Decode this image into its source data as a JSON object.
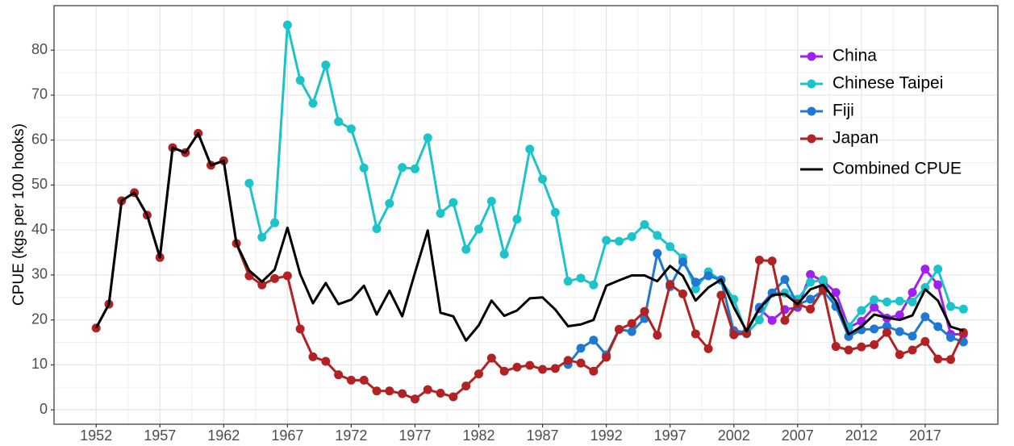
{
  "chart_data": {
    "type": "line",
    "y_label": "CPUE (kgs per 100 hooks)",
    "x": [
      1952,
      1953,
      1954,
      1955,
      1956,
      1957,
      1958,
      1959,
      1960,
      1961,
      1962,
      1963,
      1964,
      1965,
      1966,
      1967,
      1968,
      1969,
      1970,
      1971,
      1972,
      1973,
      1974,
      1975,
      1976,
      1977,
      1978,
      1979,
      1980,
      1981,
      1982,
      1983,
      1984,
      1985,
      1986,
      1987,
      1988,
      1989,
      1990,
      1991,
      1992,
      1993,
      1994,
      1995,
      1996,
      1997,
      1998,
      1999,
      2000,
      2001,
      2002,
      2003,
      2004,
      2005,
      2006,
      2007,
      2008,
      2009,
      2010,
      2011,
      2012,
      2013,
      2014,
      2015,
      2016,
      2017,
      2018,
      2019,
      2020
    ],
    "series": [
      {
        "name": "China",
        "color": "#a020f0",
        "points": true,
        "values": [
          null,
          null,
          null,
          null,
          null,
          null,
          null,
          null,
          null,
          null,
          null,
          null,
          null,
          null,
          null,
          null,
          null,
          null,
          null,
          null,
          null,
          null,
          null,
          null,
          null,
          null,
          null,
          null,
          null,
          null,
          null,
          null,
          null,
          null,
          null,
          null,
          null,
          null,
          null,
          null,
          null,
          null,
          null,
          null,
          null,
          null,
          null,
          null,
          null,
          null,
          17.6,
          17.2,
          22.5,
          19.9,
          22.3,
          22.8,
          30.1,
          28.6,
          26.1,
          18.3,
          19.7,
          22.8,
          20.4,
          21.1,
          26.1,
          31.3,
          27.8,
          16.8,
          16.8
        ]
      },
      {
        "name": "Chinese Taipei",
        "color": "#1cc4c9",
        "points": true,
        "values": [
          null,
          null,
          null,
          null,
          null,
          null,
          null,
          null,
          null,
          null,
          null,
          null,
          50.4,
          38.4,
          41.6,
          85.6,
          73.3,
          68.2,
          76.7,
          64.1,
          62.5,
          53.8,
          40.3,
          45.9,
          53.9,
          53.6,
          60.5,
          43.7,
          46.1,
          35.7,
          40.2,
          46.4,
          34.6,
          42.4,
          58,
          51.3,
          43.9,
          28.6,
          29.3,
          27.8,
          37.7,
          37.5,
          38.5,
          41.2,
          38.8,
          36.3,
          33.8,
          26.9,
          30.7,
          28.8,
          24.6,
          16.9,
          20,
          26,
          26,
          24.6,
          28.4,
          28.9,
          23,
          18.5,
          22.1,
          24.5,
          24,
          24.2,
          24,
          27.2,
          31.3,
          23,
          22.4
        ]
      },
      {
        "name": "Fiji",
        "color": "#1f78d1",
        "points": true,
        "values": [
          null,
          null,
          null,
          null,
          null,
          null,
          null,
          null,
          null,
          null,
          null,
          null,
          null,
          null,
          null,
          null,
          null,
          null,
          null,
          null,
          null,
          null,
          null,
          null,
          null,
          null,
          null,
          null,
          null,
          null,
          null,
          null,
          null,
          null,
          null,
          null,
          null,
          10.1,
          13.7,
          15.5,
          12.2,
          17.9,
          17.4,
          20.3,
          34.8,
          27.4,
          32.9,
          28.4,
          29.8,
          28.9,
          17.4,
          17.2,
          22.8,
          26,
          29,
          23.4,
          24.6,
          26.5,
          23,
          16.3,
          17.8,
          18,
          18.6,
          17.4,
          16.4,
          20.7,
          18.5,
          16.1,
          15.1
        ]
      },
      {
        "name": "Japan",
        "color": "#b22222",
        "points": true,
        "values": [
          18.2,
          23.5,
          46.5,
          48.3,
          43.3,
          33.9,
          58.3,
          57.2,
          61.5,
          54.4,
          55.4,
          37,
          29.8,
          27.8,
          29.2,
          29.8,
          18,
          11.8,
          10.8,
          7.8,
          6.6,
          6.6,
          4.2,
          4.2,
          3.6,
          2.4,
          4.5,
          3.7,
          2.9,
          5.3,
          8,
          11.5,
          8.6,
          9.5,
          9.9,
          9,
          9.2,
          11,
          10.4,
          8.6,
          11.7,
          17.9,
          19.2,
          21.9,
          16.6,
          27.9,
          25.8,
          16.9,
          13.6,
          25.5,
          16.7,
          17,
          33.3,
          33.1,
          19.9,
          23.6,
          22.4,
          26.8,
          14.1,
          13.3,
          14,
          14.5,
          17.2,
          12.3,
          13.3,
          15.2,
          11.3,
          11.2,
          17.2
        ]
      },
      {
        "name": "Combined CPUE",
        "color": "#000000",
        "points": false,
        "values": [
          18.2,
          23.5,
          46.5,
          48.3,
          43.3,
          33.9,
          58.3,
          57.2,
          61.5,
          54.4,
          55.4,
          37,
          31,
          28.5,
          31.2,
          40.5,
          30.2,
          23.7,
          28.2,
          23.5,
          24.5,
          27.6,
          21.2,
          26.5,
          20.8,
          30.5,
          39.9,
          21.6,
          20.8,
          15.4,
          18.8,
          24.3,
          20.9,
          22.1,
          24.8,
          25,
          22.3,
          18.6,
          19,
          20,
          27.6,
          28.8,
          29.9,
          29.9,
          28.6,
          32,
          29.8,
          24.3,
          27.2,
          29,
          22.8,
          17.5,
          22.5,
          25.5,
          25.8,
          23.5,
          26.8,
          27.8,
          24.2,
          16.8,
          18.5,
          21.2,
          20.5,
          20,
          21,
          26.8,
          24.3,
          18.5,
          17.6
        ]
      }
    ],
    "xlim": [
      1948.7,
      2022.7
    ],
    "xticks": [
      1952,
      1957,
      1962,
      1967,
      1972,
      1977,
      1982,
      1987,
      1992,
      1997,
      2002,
      2007,
      2012,
      2017
    ],
    "ylim": [
      -3.2,
      89.9
    ],
    "yticks": [
      0,
      10,
      20,
      30,
      40,
      50,
      60,
      70,
      80
    ],
    "grid": true,
    "legend": "top-right"
  }
}
